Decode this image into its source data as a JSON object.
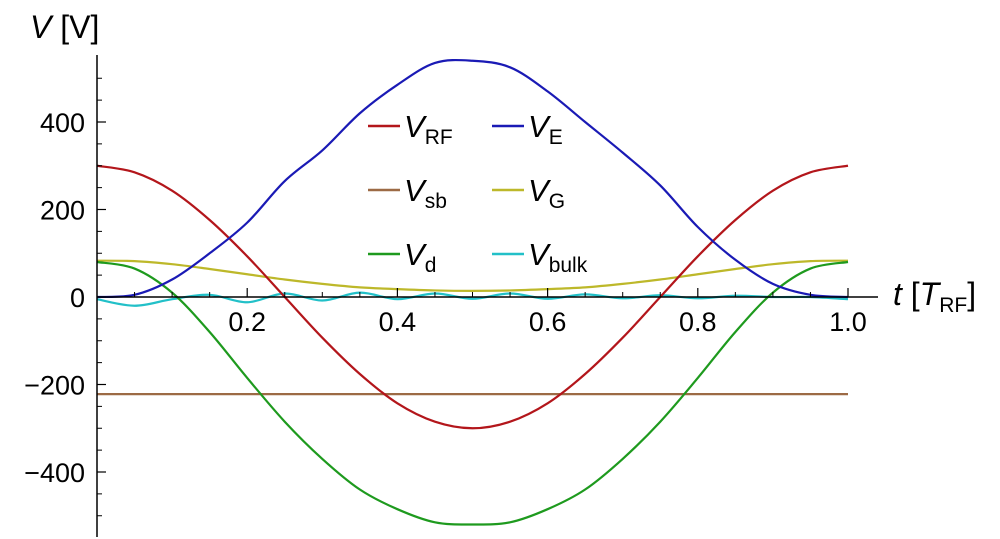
{
  "chart_data": {
    "type": "line",
    "xlabel": {
      "var": "t",
      "unit_open": " [",
      "unit_sym": "T",
      "unit_sub": "RF",
      "unit_close": "]"
    },
    "ylabel": {
      "var": "V",
      "unit": " [V]"
    },
    "xlim": [
      0,
      1.0
    ],
    "ylim": [
      -550,
      550
    ],
    "x_ticks": [
      0.2,
      0.4,
      0.6,
      0.8,
      1.0
    ],
    "x_tick_labels": [
      "0.2",
      "0.4",
      "0.6",
      "0.8",
      "1.0"
    ],
    "y_ticks": [
      -400,
      -200,
      0,
      200,
      400
    ],
    "y_tick_labels": [
      "−400",
      "−200",
      "0",
      "200",
      "400"
    ],
    "grid": false,
    "legend_position": "top-center",
    "series": [
      {
        "key": "rf",
        "sym": "V",
        "sub": "RF",
        "color": "#b3161b",
        "x": [
          0,
          0.05,
          0.1,
          0.15,
          0.2,
          0.25,
          0.3,
          0.35,
          0.4,
          0.45,
          0.5,
          0.55,
          0.6,
          0.65,
          0.7,
          0.75,
          0.8,
          0.85,
          0.9,
          0.95,
          1.0
        ],
        "y": [
          300,
          285,
          243,
          176,
          93,
          0,
          -93,
          -176,
          -243,
          -285,
          -300,
          -285,
          -243,
          -176,
          -93,
          0,
          93,
          176,
          243,
          285,
          300
        ]
      },
      {
        "key": "e",
        "sym": "V",
        "sub": "E",
        "color": "#1a1ab5",
        "x": [
          0,
          0.05,
          0.1,
          0.15,
          0.2,
          0.25,
          0.3,
          0.35,
          0.4,
          0.45,
          0.5,
          0.55,
          0.6,
          0.65,
          0.7,
          0.75,
          0.8,
          0.85,
          0.9,
          0.95,
          1.0
        ],
        "y": [
          0,
          5,
          40,
          100,
          170,
          265,
          335,
          420,
          485,
          535,
          540,
          525,
          470,
          400,
          330,
          255,
          160,
          85,
          30,
          5,
          0
        ]
      },
      {
        "key": "sb",
        "sym": "V",
        "sub": "sb",
        "color": "#9c6a45",
        "x": [
          0,
          1.0
        ],
        "y": [
          -222,
          -222
        ]
      },
      {
        "key": "g",
        "sym": "V",
        "sub": "G",
        "color": "#bdb82a",
        "x": [
          0,
          0.05,
          0.1,
          0.15,
          0.2,
          0.25,
          0.3,
          0.35,
          0.4,
          0.45,
          0.5,
          0.55,
          0.6,
          0.65,
          0.7,
          0.75,
          0.8,
          0.85,
          0.9,
          0.95,
          1.0
        ],
        "y": [
          83,
          82,
          75,
          64,
          52,
          40,
          30,
          22,
          18,
          15,
          14,
          15,
          18,
          22,
          30,
          40,
          52,
          64,
          75,
          82,
          83
        ]
      },
      {
        "key": "d",
        "sym": "V",
        "sub": "d",
        "color": "#1e9a1e",
        "x": [
          0,
          0.05,
          0.1,
          0.15,
          0.2,
          0.25,
          0.3,
          0.35,
          0.4,
          0.45,
          0.5,
          0.55,
          0.6,
          0.65,
          0.7,
          0.75,
          0.8,
          0.85,
          0.9,
          0.95,
          1.0
        ],
        "y": [
          80,
          65,
          10,
          -80,
          -185,
          -285,
          -370,
          -440,
          -485,
          -515,
          -520,
          -515,
          -485,
          -440,
          -370,
          -285,
          -185,
          -80,
          10,
          65,
          80
        ]
      },
      {
        "key": "bulk",
        "sym": "V",
        "sub": "bulk",
        "color": "#22c0c8",
        "x": [
          0,
          0.05,
          0.1,
          0.15,
          0.2,
          0.25,
          0.3,
          0.35,
          0.4,
          0.45,
          0.5,
          0.55,
          0.6,
          0.65,
          0.7,
          0.75,
          0.8,
          0.85,
          0.9,
          0.95,
          1.0
        ],
        "y": [
          -5,
          -20,
          -5,
          5,
          -12,
          8,
          -8,
          10,
          -5,
          8,
          -4,
          8,
          -4,
          6,
          -3,
          4,
          -3,
          3,
          0,
          0,
          -5
        ]
      }
    ]
  }
}
